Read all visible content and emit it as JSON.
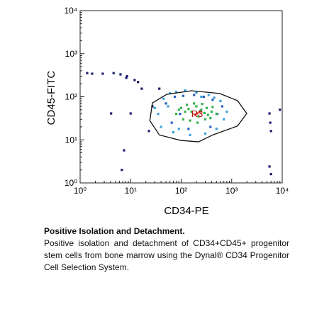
{
  "chart_data": {
    "type": "scatter",
    "xlabel": "CD34-PE",
    "ylabel": "CD45-FITC",
    "xscale": "log",
    "yscale": "log",
    "xlim": [
      1,
      10000
    ],
    "ylim": [
      1,
      10000
    ],
    "xticks": [
      {
        "value": 1,
        "label": "10⁰"
      },
      {
        "value": 10,
        "label": "10¹"
      },
      {
        "value": 100,
        "label": "10²"
      },
      {
        "value": 1000,
        "label": "10³"
      },
      {
        "value": 10000,
        "label": "10⁴"
      }
    ],
    "yticks": [
      {
        "value": 1,
        "label": "10⁰"
      },
      {
        "value": 10,
        "label": "10¹"
      },
      {
        "value": 100,
        "label": "10²"
      },
      {
        "value": 1000,
        "label": "10³"
      },
      {
        "value": 10000,
        "label": "10⁴"
      }
    ],
    "series": [
      {
        "color": "#1a1f6e",
        "x": [
          1.38,
          1.73,
          2.8,
          4.6,
          6.3,
          8.2,
          12,
          4.1,
          10,
          7.4,
          6.7,
          5600,
          6000,
          5600,
          6000,
          9000,
          16.6,
          27,
          23,
          37,
          5800,
          8.5,
          14
        ],
        "y": [
          355,
          343,
          343,
          355,
          330,
          275,
          245,
          41,
          41,
          5.7,
          2,
          41,
          16,
          2.4,
          1.6,
          50,
          154,
          60,
          16,
          154,
          25,
          300,
          220
        ]
      },
      {
        "color": "#3aa0d8",
        "x": [
          35,
          45,
          60,
          80,
          120,
          200,
          350,
          600,
          800,
          40,
          70,
          150,
          300,
          500,
          700,
          55,
          250,
          450,
          90,
          30
        ],
        "y": [
          40,
          90,
          120,
          130,
          140,
          125,
          110,
          80,
          45,
          20,
          15,
          13,
          14,
          18,
          30,
          60,
          100,
          95,
          18,
          55
        ]
      },
      {
        "color": "#2a5fc0",
        "x": [
          50,
          75,
          110,
          180,
          280,
          420,
          650,
          65,
          140,
          380,
          520,
          95
        ],
        "y": [
          70,
          100,
          105,
          110,
          100,
          85,
          60,
          25,
          18,
          20,
          40,
          40
        ]
      },
      {
        "color": "#33b24a",
        "x": [
          80,
          100,
          130,
          160,
          200,
          250,
          320,
          400,
          500,
          110,
          150,
          220,
          300,
          380,
          90,
          180,
          260,
          340,
          120,
          210,
          290,
          420,
          140,
          240
        ],
        "y": [
          40,
          55,
          65,
          45,
          60,
          50,
          55,
          45,
          40,
          30,
          28,
          35,
          30,
          32,
          50,
          70,
          68,
          38,
          45,
          25,
          42,
          58,
          52,
          47
        ]
      },
      {
        "color": "#e23a2a",
        "x": [
          207,
          190,
          230
        ],
        "y": [
          41,
          38,
          44
        ]
      }
    ],
    "gate": {
      "label": "R3",
      "x": [
        27,
        52,
        160,
        582,
        1306,
        1986,
        1306,
        422,
        221,
        98,
        37,
        24
      ],
      "y": [
        72,
        114,
        138,
        119,
        81,
        41,
        21,
        13,
        9,
        9.7,
        13,
        28
      ]
    }
  },
  "caption": {
    "title": "Positive Isolation and Detachment.",
    "text": "Positive isolation and detachment of CD34+CD45+ progenitor stem cells from bone marrow using the Dynal® CD34 Progenitor Cell Selection System."
  }
}
